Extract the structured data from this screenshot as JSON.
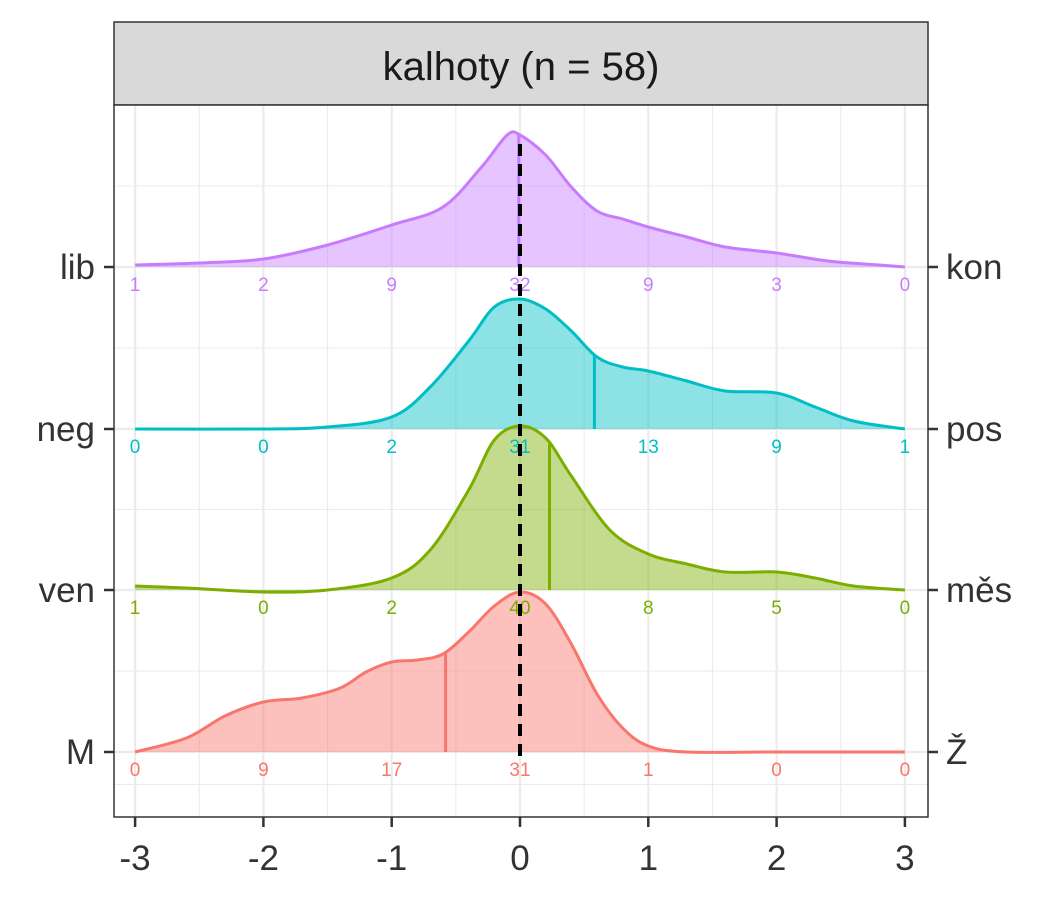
{
  "chart_data": {
    "type": "ridgeline-density",
    "facet_title": "kalhoty (n = 58)",
    "xlim": [
      -3,
      3
    ],
    "x_ticks": [
      "-3",
      "-2",
      "-1",
      "0",
      "1",
      "2",
      "3"
    ],
    "reference_line_x": 0,
    "grid": true,
    "rows": [
      {
        "left_label": "M",
        "right_label": "Ž",
        "color": "#F8766D",
        "counts": [
          "0",
          "9",
          "17",
          "31",
          "1",
          "0",
          "0"
        ],
        "mean": -0.58,
        "density_x": [
          -3,
          -2.6,
          -2.3,
          -2.0,
          -1.7,
          -1.4,
          -1.2,
          -1.0,
          -0.8,
          -0.6,
          -0.4,
          -0.2,
          0.0,
          0.2,
          0.4,
          0.6,
          0.8,
          1.0,
          1.3,
          2.0,
          3.0
        ],
        "density_y": [
          0.0,
          0.07,
          0.18,
          0.25,
          0.27,
          0.32,
          0.4,
          0.45,
          0.46,
          0.49,
          0.6,
          0.73,
          0.8,
          0.74,
          0.54,
          0.29,
          0.12,
          0.03,
          0.0,
          0.0,
          0.0
        ]
      },
      {
        "left_label": "ven",
        "right_label": "měs",
        "color": "#7CAE00",
        "counts": [
          "1",
          "0",
          "2",
          "40",
          "8",
          "5",
          "0"
        ],
        "mean": 0.23,
        "density_x": [
          -3,
          -2.6,
          -2.0,
          -1.5,
          -1.0,
          -0.7,
          -0.4,
          -0.2,
          0.0,
          0.2,
          0.4,
          0.7,
          1.0,
          1.3,
          1.6,
          2.0,
          2.3,
          2.6,
          3.0
        ],
        "density_y": [
          0.02,
          0.01,
          -0.01,
          0.0,
          0.06,
          0.2,
          0.5,
          0.75,
          0.82,
          0.76,
          0.57,
          0.3,
          0.18,
          0.13,
          0.09,
          0.09,
          0.06,
          0.02,
          0.0
        ]
      },
      {
        "left_label": "neg",
        "right_label": "pos",
        "color": "#00BFC4",
        "counts": [
          "0",
          "0",
          "2",
          "31",
          "13",
          "9",
          "1"
        ],
        "mean": 0.58,
        "density_x": [
          -3,
          -2.0,
          -1.5,
          -1.0,
          -0.7,
          -0.4,
          -0.2,
          0.0,
          0.2,
          0.4,
          0.6,
          0.8,
          1.0,
          1.3,
          1.6,
          2.0,
          2.3,
          2.6,
          3.0
        ],
        "density_y": [
          0.0,
          0.0,
          0.01,
          0.06,
          0.21,
          0.44,
          0.61,
          0.65,
          0.6,
          0.49,
          0.36,
          0.31,
          0.29,
          0.24,
          0.19,
          0.18,
          0.11,
          0.04,
          0.0
        ]
      },
      {
        "left_label": "lib",
        "right_label": "kon",
        "color": "#C77CFF",
        "counts": [
          "1",
          "2",
          "9",
          "32",
          "9",
          "3",
          "0"
        ],
        "mean": -0.01,
        "density_x": [
          -3,
          -2.5,
          -2.0,
          -1.5,
          -1.0,
          -0.6,
          -0.3,
          -0.1,
          0.0,
          0.2,
          0.4,
          0.6,
          0.8,
          1.0,
          1.3,
          1.6,
          2.0,
          2.4,
          2.8,
          3.0
        ],
        "density_y": [
          0.01,
          0.02,
          0.04,
          0.11,
          0.21,
          0.3,
          0.5,
          0.66,
          0.66,
          0.56,
          0.4,
          0.28,
          0.24,
          0.2,
          0.15,
          0.1,
          0.07,
          0.03,
          0.01,
          0.0
        ]
      }
    ]
  }
}
